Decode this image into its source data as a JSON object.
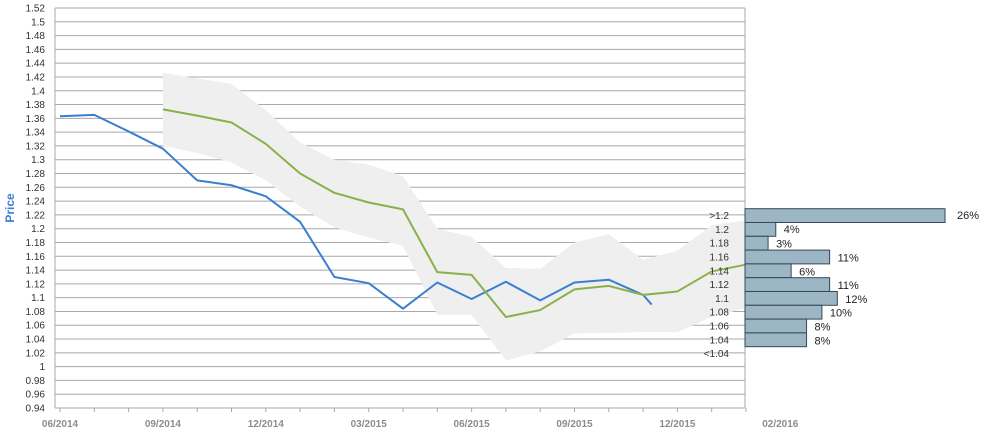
{
  "chart_data": {
    "type": "line",
    "ylabel": "Price",
    "ylim": [
      0.94,
      1.52
    ],
    "yticks": [
      "0.94",
      "0.96",
      "0.98",
      "1",
      "1.02",
      "1.04",
      "1.06",
      "1.08",
      "1.1",
      "1.12",
      "1.14",
      "1.16",
      "1.18",
      "1.2",
      "1.22",
      "1.24",
      "1.26",
      "1.28",
      "1.3",
      "1.32",
      "1.34",
      "1.36",
      "1.38",
      "1.4",
      "1.42",
      "1.44",
      "1.46",
      "1.48",
      "1.5",
      "1.52"
    ],
    "xlim": [
      0,
      20
    ],
    "xticks": [
      {
        "x": 0,
        "label": "06/2014"
      },
      {
        "x": 3,
        "label": "09/2014"
      },
      {
        "x": 6,
        "label": "12/2014"
      },
      {
        "x": 9,
        "label": "03/2015"
      },
      {
        "x": 12,
        "label": "06/2015"
      },
      {
        "x": 15,
        "label": "09/2015"
      },
      {
        "x": 18,
        "label": "12/2015"
      },
      {
        "x": 21,
        "label": "02/2016"
      }
    ],
    "grid": true,
    "colors": {
      "actual": "#3a7fd0",
      "forecast": "#8ab04a",
      "band": "#efefef",
      "bars": "#9cb6c5",
      "bar_border": "#33485a",
      "ylabel": "#3a7fd0"
    },
    "series": [
      {
        "key": "actual",
        "x": [
          0,
          1,
          2,
          3,
          4,
          5,
          6,
          7,
          8,
          9,
          10,
          11,
          12,
          13,
          14,
          15,
          16,
          17,
          17.25
        ],
        "y": [
          1.363,
          1.365,
          1.341,
          1.316,
          1.27,
          1.263,
          1.247,
          1.21,
          1.13,
          1.121,
          1.084,
          1.122,
          1.098,
          1.123,
          1.096,
          1.122,
          1.126,
          1.104,
          1.09
        ]
      },
      {
        "key": "forecast",
        "x": [
          3,
          4,
          5,
          6,
          7,
          8,
          9,
          10,
          11,
          12,
          13,
          14,
          15,
          16,
          17,
          18,
          19,
          20,
          20.15
        ],
        "y": [
          1.373,
          1.364,
          1.354,
          1.323,
          1.28,
          1.252,
          1.238,
          1.228,
          1.137,
          1.133,
          1.072,
          1.082,
          1.112,
          1.117,
          1.104,
          1.109,
          1.138,
          1.148,
          1.13
        ]
      }
    ],
    "band": {
      "x": [
        3,
        4,
        5,
        6,
        7,
        8,
        9,
        10,
        11,
        12,
        13,
        14,
        15,
        16,
        17,
        18,
        19,
        20
      ],
      "upper": [
        1.426,
        1.418,
        1.41,
        1.372,
        1.325,
        1.3,
        1.293,
        1.276,
        1.2,
        1.188,
        1.143,
        1.142,
        1.18,
        1.192,
        1.155,
        1.168,
        1.205,
        1.212
      ],
      "lower": [
        1.32,
        1.31,
        1.296,
        1.27,
        1.232,
        1.202,
        1.187,
        1.175,
        1.075,
        1.075,
        1.009,
        1.022,
        1.048,
        1.049,
        1.05,
        1.05,
        1.072,
        1.085
      ]
    },
    "distribution": {
      "bins": [
        {
          "label": ">1.2",
          "value": 26,
          "text": "26%"
        },
        {
          "label": "1.2",
          "value": 4,
          "text": "4%"
        },
        {
          "label": "1.18",
          "value": 3,
          "text": "3%"
        },
        {
          "label": "1.16",
          "value": 11,
          "text": "11%"
        },
        {
          "label": "1.14",
          "value": 6,
          "text": "6%"
        },
        {
          "label": "1.12",
          "value": 11,
          "text": "11%"
        },
        {
          "label": "1.1",
          "value": 12,
          "text": "12%"
        },
        {
          "label": "1.08",
          "value": 10,
          "text": "10%"
        },
        {
          "label": "1.06",
          "value": 8,
          "text": "8%"
        },
        {
          "label": "1.04",
          "value": 8,
          "text": "8%"
        },
        {
          "label": "<1.04",
          "value": 0,
          "text": ""
        }
      ]
    }
  }
}
